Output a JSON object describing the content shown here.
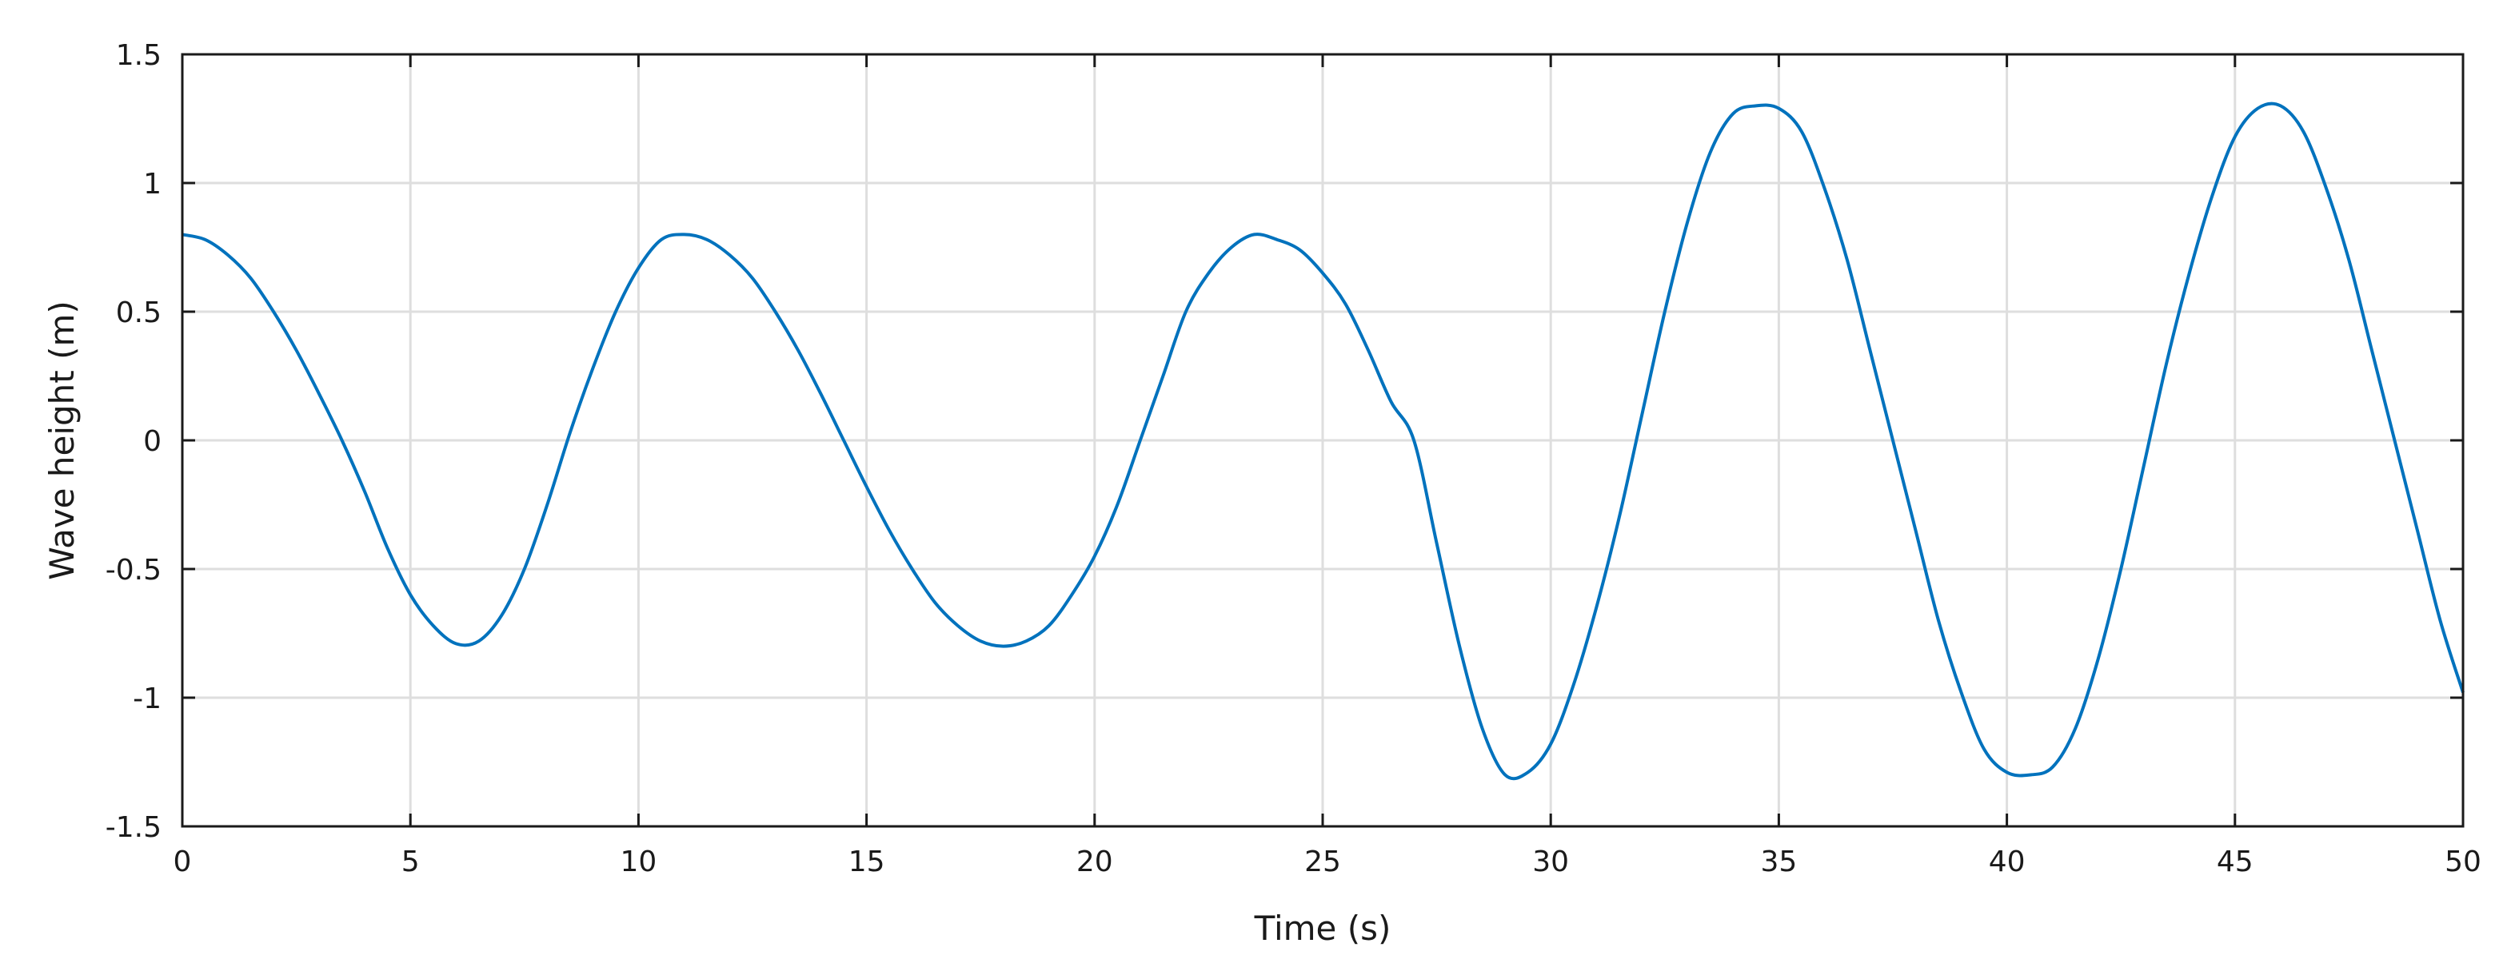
{
  "chart_data": {
    "type": "line",
    "title": "",
    "xlabel": "Time (s)",
    "ylabel": "Wave height (m)",
    "xlim": [
      0,
      50
    ],
    "ylim": [
      -1.5,
      1.5
    ],
    "xticks": [
      0,
      5,
      10,
      15,
      20,
      25,
      30,
      35,
      40,
      45,
      50
    ],
    "yticks": [
      1.5,
      1,
      0.5,
      0,
      -0.5,
      -1,
      -1.5
    ],
    "xtick_labels": [
      "0",
      "5",
      "10",
      "15",
      "20",
      "25",
      "30",
      "35",
      "40",
      "45",
      "50"
    ],
    "ytick_labels": [
      "1.5",
      "1",
      "0.5",
      "0",
      "-0.5",
      "-1",
      "-1.5"
    ],
    "grid": true,
    "legend": "none",
    "series": [
      {
        "color": "#0072bd",
        "x": [
          0,
          0.5,
          1,
          1.5,
          2,
          2.5,
          3,
          3.5,
          4,
          4.5,
          5,
          5.5,
          6,
          6.5,
          7,
          7.5,
          8,
          8.5,
          9,
          9.5,
          10,
          10.5,
          11,
          11.5,
          12,
          12.5,
          13,
          13.5,
          14,
          14.5,
          15,
          15.5,
          16,
          16.5,
          17,
          17.5,
          18,
          18.5,
          19,
          19.5,
          20,
          20.5,
          21,
          21.5,
          22,
          22.5,
          23,
          23.5,
          24,
          24.5,
          25,
          25.5,
          26,
          26.5,
          27,
          27.5,
          28,
          28.5,
          29,
          29.5,
          30,
          30.5,
          31,
          31.5,
          32,
          32.5,
          33,
          33.5,
          34,
          34.5,
          35,
          35.5,
          36,
          36.5,
          37,
          37.5,
          38,
          38.5,
          39,
          39.5,
          40,
          40.5,
          41,
          41.5,
          42,
          42.5,
          43,
          43.5,
          44,
          44.5,
          45,
          45.5,
          46,
          46.5,
          47,
          47.5,
          48,
          48.5,
          49,
          49.5,
          50
        ],
        "y": [
          0.8,
          0.78,
          0.72,
          0.63,
          0.5,
          0.35,
          0.18,
          0.0,
          -0.2,
          -0.42,
          -0.6,
          -0.72,
          -0.79,
          -0.78,
          -0.68,
          -0.5,
          -0.25,
          0.03,
          0.28,
          0.5,
          0.67,
          0.78,
          0.8,
          0.78,
          0.72,
          0.63,
          0.5,
          0.35,
          0.18,
          0.0,
          -0.18,
          -0.35,
          -0.5,
          -0.63,
          -0.72,
          -0.78,
          -0.8,
          -0.78,
          -0.72,
          -0.6,
          -0.45,
          -0.25,
          0.0,
          0.25,
          0.5,
          0.65,
          0.75,
          0.8,
          0.78,
          0.74,
          0.65,
          0.53,
          0.35,
          0.15,
          0.0,
          -0.4,
          -0.8,
          -1.12,
          -1.3,
          -1.29,
          -1.18,
          -0.95,
          -0.65,
          -0.3,
          0.1,
          0.5,
          0.85,
          1.12,
          1.27,
          1.3,
          1.29,
          1.2,
          0.98,
          0.7,
          0.35,
          0.0,
          -0.35,
          -0.7,
          -0.98,
          -1.2,
          -1.29,
          -1.3,
          -1.27,
          -1.12,
          -0.85,
          -0.5,
          -0.1,
          0.3,
          0.65,
          0.95,
          1.18,
          1.29,
          1.3,
          1.2,
          0.98,
          0.7,
          0.35,
          0.0,
          -0.35,
          -0.7,
          -0.98
        ]
      }
    ]
  }
}
